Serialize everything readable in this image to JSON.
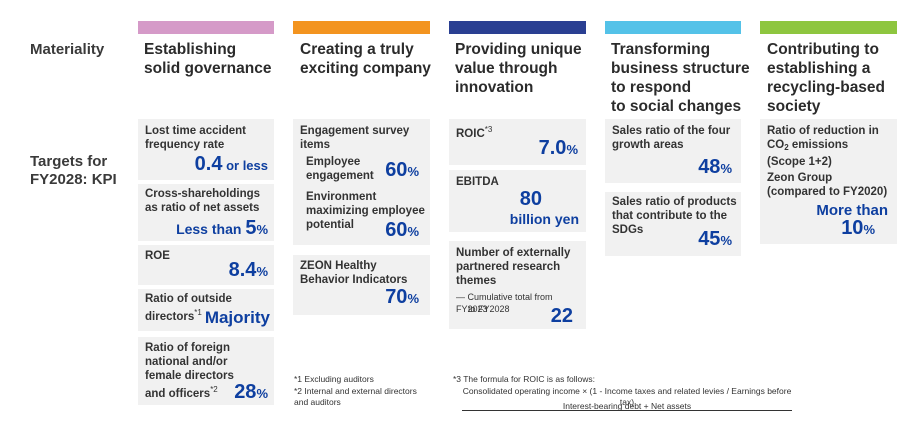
{
  "row_labels": {
    "materiality": "Materiality",
    "targets_line1": "Targets for",
    "targets_line2": "FY2028: KPI"
  },
  "colors": {
    "gov": "#d59ac8",
    "exciting": "#f3941f",
    "innov": "#2a3f92",
    "transform": "#54c2e8",
    "recycle": "#8ec63f",
    "value": "#0e3fa0"
  },
  "columns": {
    "gov": {
      "heading": "Establishing\nsolid governance",
      "k1_label": "Lost time accident\nfrequency rate",
      "k1_value": "0.4",
      "k1_unit": " or less",
      "k2_label": "Cross-shareholdings\nas ratio of net assets",
      "k2_prefix": "Less than ",
      "k2_value": "5",
      "k2_unit": "%",
      "k3_label": "ROE",
      "k3_value": "8.4",
      "k3_unit": "%",
      "k4_label": "Ratio of outside\ndirectors",
      "k4_note": "*1",
      "k4_value": "Majority",
      "k5_label": "Ratio of foreign\nnational and/or\nfemale directors\nand officers",
      "k5_note": "*2",
      "k5_value": "28",
      "k5_unit": "%"
    },
    "exciting": {
      "heading": "Creating a truly\nexciting company",
      "k1_label": "Engagement survey\nitems",
      "k1a_label": "Employee\nengagement",
      "k1a_value": "60",
      "k1a_unit": "%",
      "k1b_label": "Environment\nmaximizing employee\npotential",
      "k1b_value": "60",
      "k1b_unit": "%",
      "k2_label": "ZEON Healthy\nBehavior Indicators",
      "k2_value": "70",
      "k2_unit": "%"
    },
    "innov": {
      "heading": "Providing unique\nvalue through\ninnovation",
      "k1_label": "ROIC",
      "k1_note": "*3",
      "k1_value": "7.0",
      "k1_unit": "%",
      "k2_label": "EBITDA",
      "k2_value": "80",
      "k2_unit": "billion yen",
      "k3_label": "Number of externally\npartnered research\nthemes",
      "k3_sub1": "— Cumulative total from FY2023",
      "k3_sub2": "to FY2028",
      "k3_value": "22"
    },
    "transform": {
      "heading": "Transforming\nbusiness structure\nto respond\nto social changes",
      "k1_label": "Sales ratio of the four\ngrowth areas",
      "k1_value": "48",
      "k1_unit": "%",
      "k2_label": "Sales ratio of products\nthat contribute to the\nSDGs",
      "k2_value": "45",
      "k2_unit": "%"
    },
    "recycle": {
      "heading": "Contributing to\nestablishing a\nrecycling-based\nsociety",
      "k1_label_a": "Ratio of reduction in",
      "k1_label_b": "CO",
      "k1_label_sub": "2",
      "k1_label_c": " emissions",
      "k1_label_d": "(Scope 1+2)",
      "k1_label2": "Zeon Group\n(compared to FY2020)",
      "k1_prefix": "More than",
      "k1_value": "10",
      "k1_unit": "%"
    }
  },
  "footnotes": {
    "n1": "*1 Excluding auditors",
    "n2": "*2 Internal and external directors\n    and auditors",
    "n3": "*3 The formula for ROIC is as follows:",
    "formula_num": "Consolidated operating income × (1 - Income taxes and related levies / Earnings before tax)",
    "formula_den": "Interest-bearing debt + Net assets"
  }
}
